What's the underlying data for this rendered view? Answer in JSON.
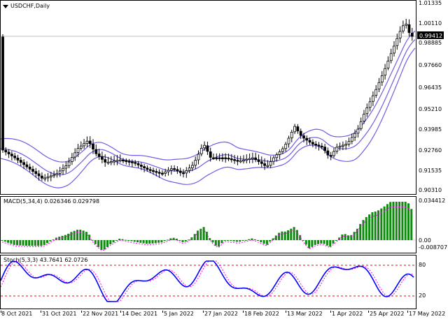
{
  "main_chart": {
    "symbol_title": "USDCHF,Daily",
    "current_price_label": "0.99412",
    "price_axis_labels": [
      "1.01335",
      "1.00110",
      "0.98885",
      "0.97660",
      "0.96435",
      "0.95210",
      "0.93985",
      "0.92760",
      "0.91535",
      "0.90310"
    ],
    "colors": {
      "candle": "#000000",
      "bands": "#6e5ce6",
      "price_line": "#c0c0c0"
    }
  },
  "macd": {
    "title": "MACD(5,34,4) 0.026346 0.029798",
    "axis_labels": [
      "0.034412",
      "0.00",
      "-0.008707"
    ],
    "colors": {
      "histogram": "#0f8a0f",
      "signal": "#ff00ff"
    }
  },
  "stochastic": {
    "title": "Stoch(5,3,3) 43.7641 62.0726",
    "axis_labels": [
      "80",
      "20"
    ],
    "colors": {
      "main": "#0000ff",
      "signal": "#ff00ff",
      "levels": "#ff0000"
    }
  },
  "date_axis": {
    "labels": [
      "8 Oct 2021",
      "31 Oct 2021",
      "22 Nov 2021",
      "14 Dec 2021",
      "5 Jan 2022",
      "27 Jan 2022",
      "18 Feb 2022",
      "13 Mar 2022",
      "1 Apr 2022",
      "25 Apr 2022",
      "17 May 2022"
    ]
  }
}
